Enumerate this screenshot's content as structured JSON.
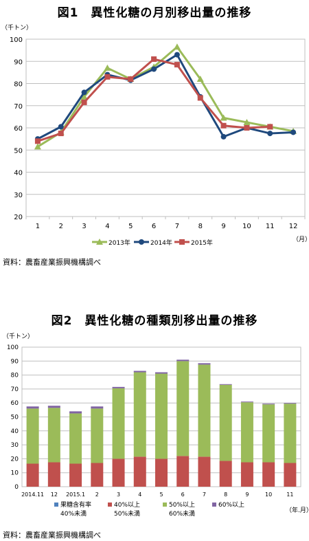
{
  "colors": {
    "series_2013": "#9bbb59",
    "series_2014": "#1f497d",
    "series_2015": "#c0504d",
    "stack_fruit": "#4f81bd",
    "stack_40_50": "#c0504d",
    "stack_50_60": "#9bbb59",
    "stack_60": "#8064a2"
  },
  "chart_data": [
    {
      "type": "line",
      "title": "図1　異性化糖の月別移出量の推移",
      "ylabel": "（千トン）",
      "xlabel": "（月）",
      "ylim": [
        20,
        100
      ],
      "yticks": [
        20,
        30,
        40,
        50,
        60,
        70,
        80,
        90,
        100
      ],
      "categories": [
        "1",
        "2",
        "3",
        "4",
        "5",
        "6",
        "7",
        "8",
        "9",
        "10",
        "11",
        "12"
      ],
      "series": [
        {
          "name": "2013年",
          "marker": "triangle",
          "values": [
            51.5,
            58,
            74,
            87,
            82,
            87.5,
            96.5,
            82,
            64.5,
            62.5,
            60.5,
            58.5
          ]
        },
        {
          "name": "2014年",
          "marker": "circle",
          "values": [
            55,
            60.5,
            76,
            84,
            81.5,
            86.5,
            93,
            74,
            56,
            60,
            57.5,
            58
          ]
        },
        {
          "name": "2015年",
          "marker": "square",
          "values": [
            54,
            57.5,
            71.5,
            83,
            82,
            91,
            88.5,
            73.5,
            61,
            60,
            60.5,
            null
          ]
        }
      ],
      "legend_position": "bottom",
      "grid": true,
      "source": "資料：農畜産業振興機構調べ"
    },
    {
      "type": "bar",
      "stacked": true,
      "title": "図2　異性化糖の種類別移出量の推移",
      "ylabel": "（千トン）",
      "xlabel": "（年.月）",
      "ylim": [
        0,
        100
      ],
      "yticks": [
        0,
        10,
        20,
        30,
        40,
        50,
        60,
        70,
        80,
        90,
        100
      ],
      "categories": [
        "2014.11",
        "12",
        "2015.1",
        "2",
        "3",
        "4",
        "5",
        "6",
        "7",
        "8",
        "9",
        "10",
        "11"
      ],
      "series": [
        {
          "name": "果糖含有率 40%未満",
          "values": [
            0,
            0,
            0,
            0,
            0,
            0,
            0,
            0,
            0,
            0,
            0,
            0,
            0
          ]
        },
        {
          "name": "40%以上 50%未満",
          "values": [
            16.5,
            17.5,
            16.5,
            17,
            20,
            21.5,
            20,
            22,
            21.5,
            18.5,
            17.5,
            17.5,
            17
          ]
        },
        {
          "name": "50%以上 60%未満",
          "values": [
            39.5,
            39,
            36,
            39,
            50.5,
            60.5,
            61,
            68,
            66,
            54.5,
            43,
            41.5,
            42.5
          ]
        },
        {
          "name": "60%以上",
          "values": [
            1.5,
            1.5,
            1.5,
            1.5,
            1,
            1,
            1,
            1,
            1,
            0.5,
            0.5,
            0.5,
            0.5
          ]
        }
      ],
      "legend": [
        {
          "line1": "果糖含有率",
          "line2": "40%未満"
        },
        {
          "line1": "40%以上",
          "line2": "50%未満"
        },
        {
          "line1": "50%以上",
          "line2": "60%未満"
        },
        {
          "line1": "60%以上",
          "line2": ""
        }
      ],
      "legend_position": "bottom",
      "grid": true,
      "source": "資料：農畜産業振興機構調べ"
    }
  ]
}
